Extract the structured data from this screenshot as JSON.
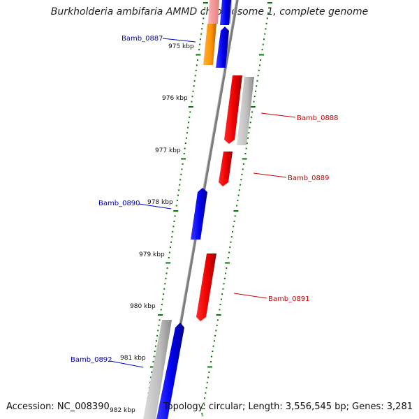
{
  "header": {
    "title": "Burkholderia ambifaria AMMD chromosome 1, complete genome"
  },
  "footer": {
    "accession": "Accession: NC_008390",
    "topology": "Topology: circular; Length: 3,556,545 bp; Genes: 3,281"
  },
  "map": {
    "ticks": [
      {
        "label": "975 kbp"
      },
      {
        "label": "976 kbp"
      },
      {
        "label": "977 kbp"
      },
      {
        "label": "978 kbp"
      },
      {
        "label": "979 kbp"
      },
      {
        "label": "980 kbp"
      },
      {
        "label": "981 kbp"
      },
      {
        "label": "982 kbp"
      }
    ],
    "gene_labels": [
      {
        "text": "Bamb_0887",
        "strand": "minus",
        "color": "#0000cc"
      },
      {
        "text": "Bamb_0888",
        "strand": "plus",
        "color": "#cc0000"
      },
      {
        "text": "Bamb_0889",
        "strand": "plus",
        "color": "#cc0000"
      },
      {
        "text": "Bamb_0890",
        "strand": "minus",
        "color": "#0000cc"
      },
      {
        "text": "Bamb_0891",
        "strand": "plus",
        "color": "#cc0000"
      },
      {
        "text": "Bamb_0892",
        "strand": "minus",
        "color": "#0000cc"
      }
    ],
    "colors": {
      "forward_cds": "#ff0000",
      "reverse_cds": "#0000ff",
      "gene": "#b8b8b8",
      "rna": "#ff9900",
      "backbone": "#808080",
      "tick_dots": "#007700"
    }
  }
}
